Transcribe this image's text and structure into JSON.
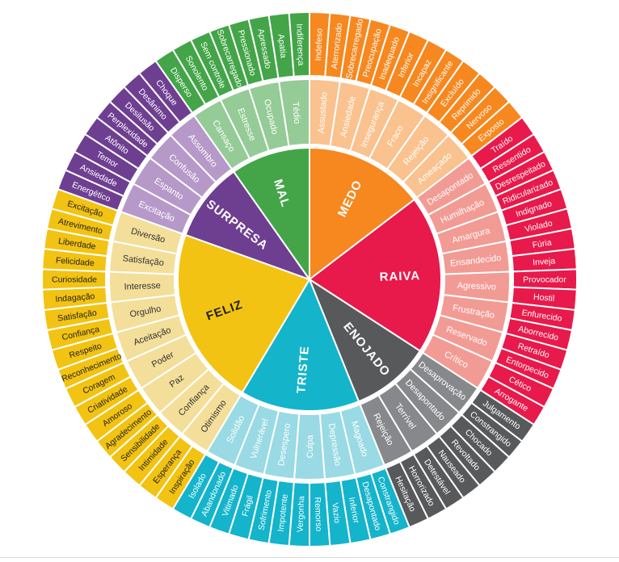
{
  "wheel": {
    "sections": [
      {
        "core": "MEDO",
        "color": "#F6881F",
        "tint": "#FAC28E",
        "core_text": "#FFFFFF",
        "mid_text": "#FFFFFF",
        "outer_text": "#FFFFFF",
        "children": [
          {
            "label": "Assustado",
            "outer": [
              "Indefeso",
              "Aterrorizado"
            ]
          },
          {
            "label": "Ansiedade",
            "outer": [
              "Sobrecarregado",
              "Preocupação"
            ]
          },
          {
            "label": "Insegurança",
            "outer": [
              "Inadequado",
              "Inferior"
            ]
          },
          {
            "label": "Fraco",
            "outer": [
              "Incapaz",
              "Insignificante"
            ]
          },
          {
            "label": "Rejeição",
            "outer": [
              "Excluído",
              "Reprimido"
            ]
          },
          {
            "label": "Ameaçado",
            "outer": [
              "Nervoso",
              "Exposto"
            ]
          }
        ]
      },
      {
        "core": "RAIVA",
        "color": "#E8194B",
        "tint": "#F29B94",
        "core_text": "#FFFFFF",
        "mid_text": "#FFFFFF",
        "outer_text": "#FFFFFF",
        "children": [
          {
            "label": "Desapontado",
            "outer": [
              "Traído",
              "Ressentido"
            ]
          },
          {
            "label": "Humilhação",
            "outer": [
              "Desrespeitado",
              "Ridicularizado"
            ]
          },
          {
            "label": "Amargura",
            "outer": [
              "Indignado",
              "Violado"
            ]
          },
          {
            "label": "Ensandecido",
            "outer": [
              "Fúria",
              "Inveja"
            ]
          },
          {
            "label": "Agressivo",
            "outer": [
              "Provocador",
              "Hostil"
            ]
          },
          {
            "label": "Frustração",
            "outer": [
              "Enfurecido",
              "Aborrecido"
            ]
          },
          {
            "label": "Reservado",
            "outer": [
              "Retraído",
              "Entorpecido"
            ]
          },
          {
            "label": "Crítico",
            "outer": [
              "Cético",
              "Arrogante"
            ]
          }
        ]
      },
      {
        "core": "ENOJADO",
        "color": "#58595B",
        "tint": "#87888B",
        "core_text": "#FFFFFF",
        "mid_text": "#FFFFFF",
        "outer_text": "#FFFFFF",
        "children": [
          {
            "label": "Desaprovação",
            "outer": [
              "Julgamento",
              "Constrangido"
            ]
          },
          {
            "label": "Desapontado",
            "outer": [
              "Chocado",
              "Revoltado"
            ]
          },
          {
            "label": "Terrível",
            "outer": [
              "Nauseado",
              "Detestável"
            ]
          },
          {
            "label": "Rejeição",
            "outer": [
              "Horrorizado",
              "Hesitação"
            ]
          }
        ]
      },
      {
        "core": "TRISTE",
        "color": "#14B4CB",
        "tint": "#99DAE4",
        "core_text": "#FFFFFF",
        "mid_text": "#FFFFFF",
        "outer_text": "#FFFFFF",
        "children": [
          {
            "label": "Magoado",
            "outer": [
              "Constrangido",
              "Desapontado"
            ]
          },
          {
            "label": "Depressão",
            "outer": [
              "Inferior",
              "Vazio"
            ]
          },
          {
            "label": "Culpa",
            "outer": [
              "Remorso",
              "Vergonha"
            ]
          },
          {
            "label": "Desespero",
            "outer": [
              "Impotente",
              "Sofrimento"
            ]
          },
          {
            "label": "Vulnerável",
            "outer": [
              "Frágil",
              "Vitimado"
            ]
          },
          {
            "label": "Solidão",
            "outer": [
              "Abandonado",
              "Isolado"
            ]
          }
        ]
      },
      {
        "core": "FELIZ",
        "color": "#F2C313",
        "tint": "#F3DF9A",
        "core_text": "#1F1F1F",
        "mid_text": "#333333",
        "outer_text": "#1F1F1F",
        "children": [
          {
            "label": "Otimismo",
            "outer": [
              "Inspiração",
              "Esperança"
            ]
          },
          {
            "label": "Confiança",
            "outer": [
              "Intimidade",
              "Sensibilidade"
            ]
          },
          {
            "label": "Paz",
            "outer": [
              "Agradecimento",
              "Amoroso"
            ]
          },
          {
            "label": "Poder",
            "outer": [
              "Criatividade",
              "Coragem"
            ]
          },
          {
            "label": "Aceitação",
            "outer": [
              "Reconhecimento",
              "Respeito"
            ]
          },
          {
            "label": "Orgulho",
            "outer": [
              "Confiança",
              "Satisfação"
            ]
          },
          {
            "label": "Interesse",
            "outer": [
              "Indagação",
              "Curiosidade"
            ]
          },
          {
            "label": "Satisfação",
            "outer": [
              "Felicidade",
              "Liberdade"
            ]
          },
          {
            "label": "Diversão",
            "outer": [
              "Atrevimento",
              "Excitação"
            ]
          }
        ]
      },
      {
        "core": "SURPRESA",
        "color": "#6E3F91",
        "tint": "#B699C9",
        "core_text": "#FFFFFF",
        "mid_text": "#FFFFFF",
        "outer_text": "#FFFFFF",
        "children": [
          {
            "label": "Excitação",
            "outer": [
              "Energético",
              "Ansiedade"
            ]
          },
          {
            "label": "Espanto",
            "outer": [
              "Temor",
              "Atônito"
            ]
          },
          {
            "label": "Confusão",
            "outer": [
              "Perplexidade",
              "Desilusão"
            ]
          },
          {
            "label": "Assombro",
            "outer": [
              "Desânimo",
              "Choque"
            ]
          }
        ]
      },
      {
        "core": "MAL",
        "color": "#43A548",
        "tint": "#94CB96",
        "core_text": "#FFFFFF",
        "mid_text": "#FFFFFF",
        "outer_text": "#FFFFFF",
        "children": [
          {
            "label": "Cansaço",
            "outer": [
              "Disperso",
              "Sonolento"
            ]
          },
          {
            "label": "Estresse",
            "outer": [
              "Sem controle",
              "Sobrecarregado"
            ]
          },
          {
            "label": "Ocupado",
            "outer": [
              "Pressionado",
              "Apressado"
            ]
          },
          {
            "label": "Tédio",
            "outer": [
              "Apatia",
              "Indiferença"
            ]
          }
        ]
      }
    ]
  }
}
